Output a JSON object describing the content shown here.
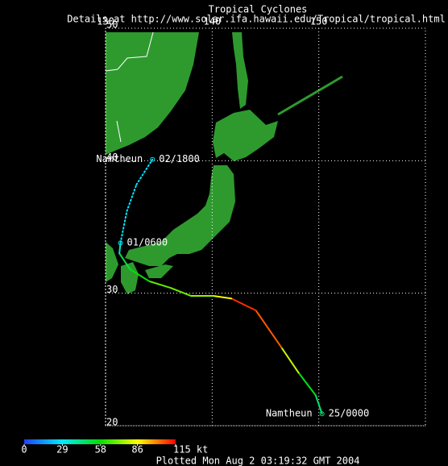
{
  "chart_data": {
    "type": "track-map",
    "title": "Tropical Cyclones",
    "subtitle": "Details at http://www.solar.ifa.hawaii.edu/Tropical/tropical.html",
    "footer": "Plotted Mon Aug 2 03:19:32 GMT 2004",
    "xlim": [
      130,
      160
    ],
    "ylim": [
      20,
      50
    ],
    "xticks": [
      130,
      140,
      150
    ],
    "yticks": [
      20,
      30,
      40,
      50
    ],
    "grid": true,
    "track": {
      "name": "Namtheun",
      "lon": [
        150.3,
        149.7,
        148.1,
        146.5,
        144.1,
        141.8,
        140.1,
        138.0,
        136.1,
        134.1,
        132.3,
        131.3,
        131.4,
        132.0,
        132.9,
        134.4
      ],
      "lat": [
        20.9,
        22.3,
        24.0,
        25.9,
        28.7,
        29.6,
        29.8,
        29.8,
        30.4,
        30.9,
        31.8,
        33.0,
        33.8,
        36.2,
        38.2,
        40.1
      ],
      "wind": [
        45,
        55,
        80,
        105,
        110,
        85,
        75,
        70,
        68,
        58,
        50,
        35,
        30,
        28,
        28,
        28
      ],
      "times": [
        "25/0000",
        null,
        null,
        null,
        null,
        null,
        null,
        null,
        null,
        null,
        null,
        null,
        "01/0600",
        null,
        null,
        "02/1800"
      ]
    },
    "colorbar": {
      "ticks": [
        0,
        29,
        58,
        86,
        {
          "value": 115,
          "label": "115 kt"
        }
      ],
      "colors": [
        "#2040ff",
        "#00e8ff",
        "#00e000",
        "#ffff00",
        "#ff0000"
      ]
    }
  }
}
